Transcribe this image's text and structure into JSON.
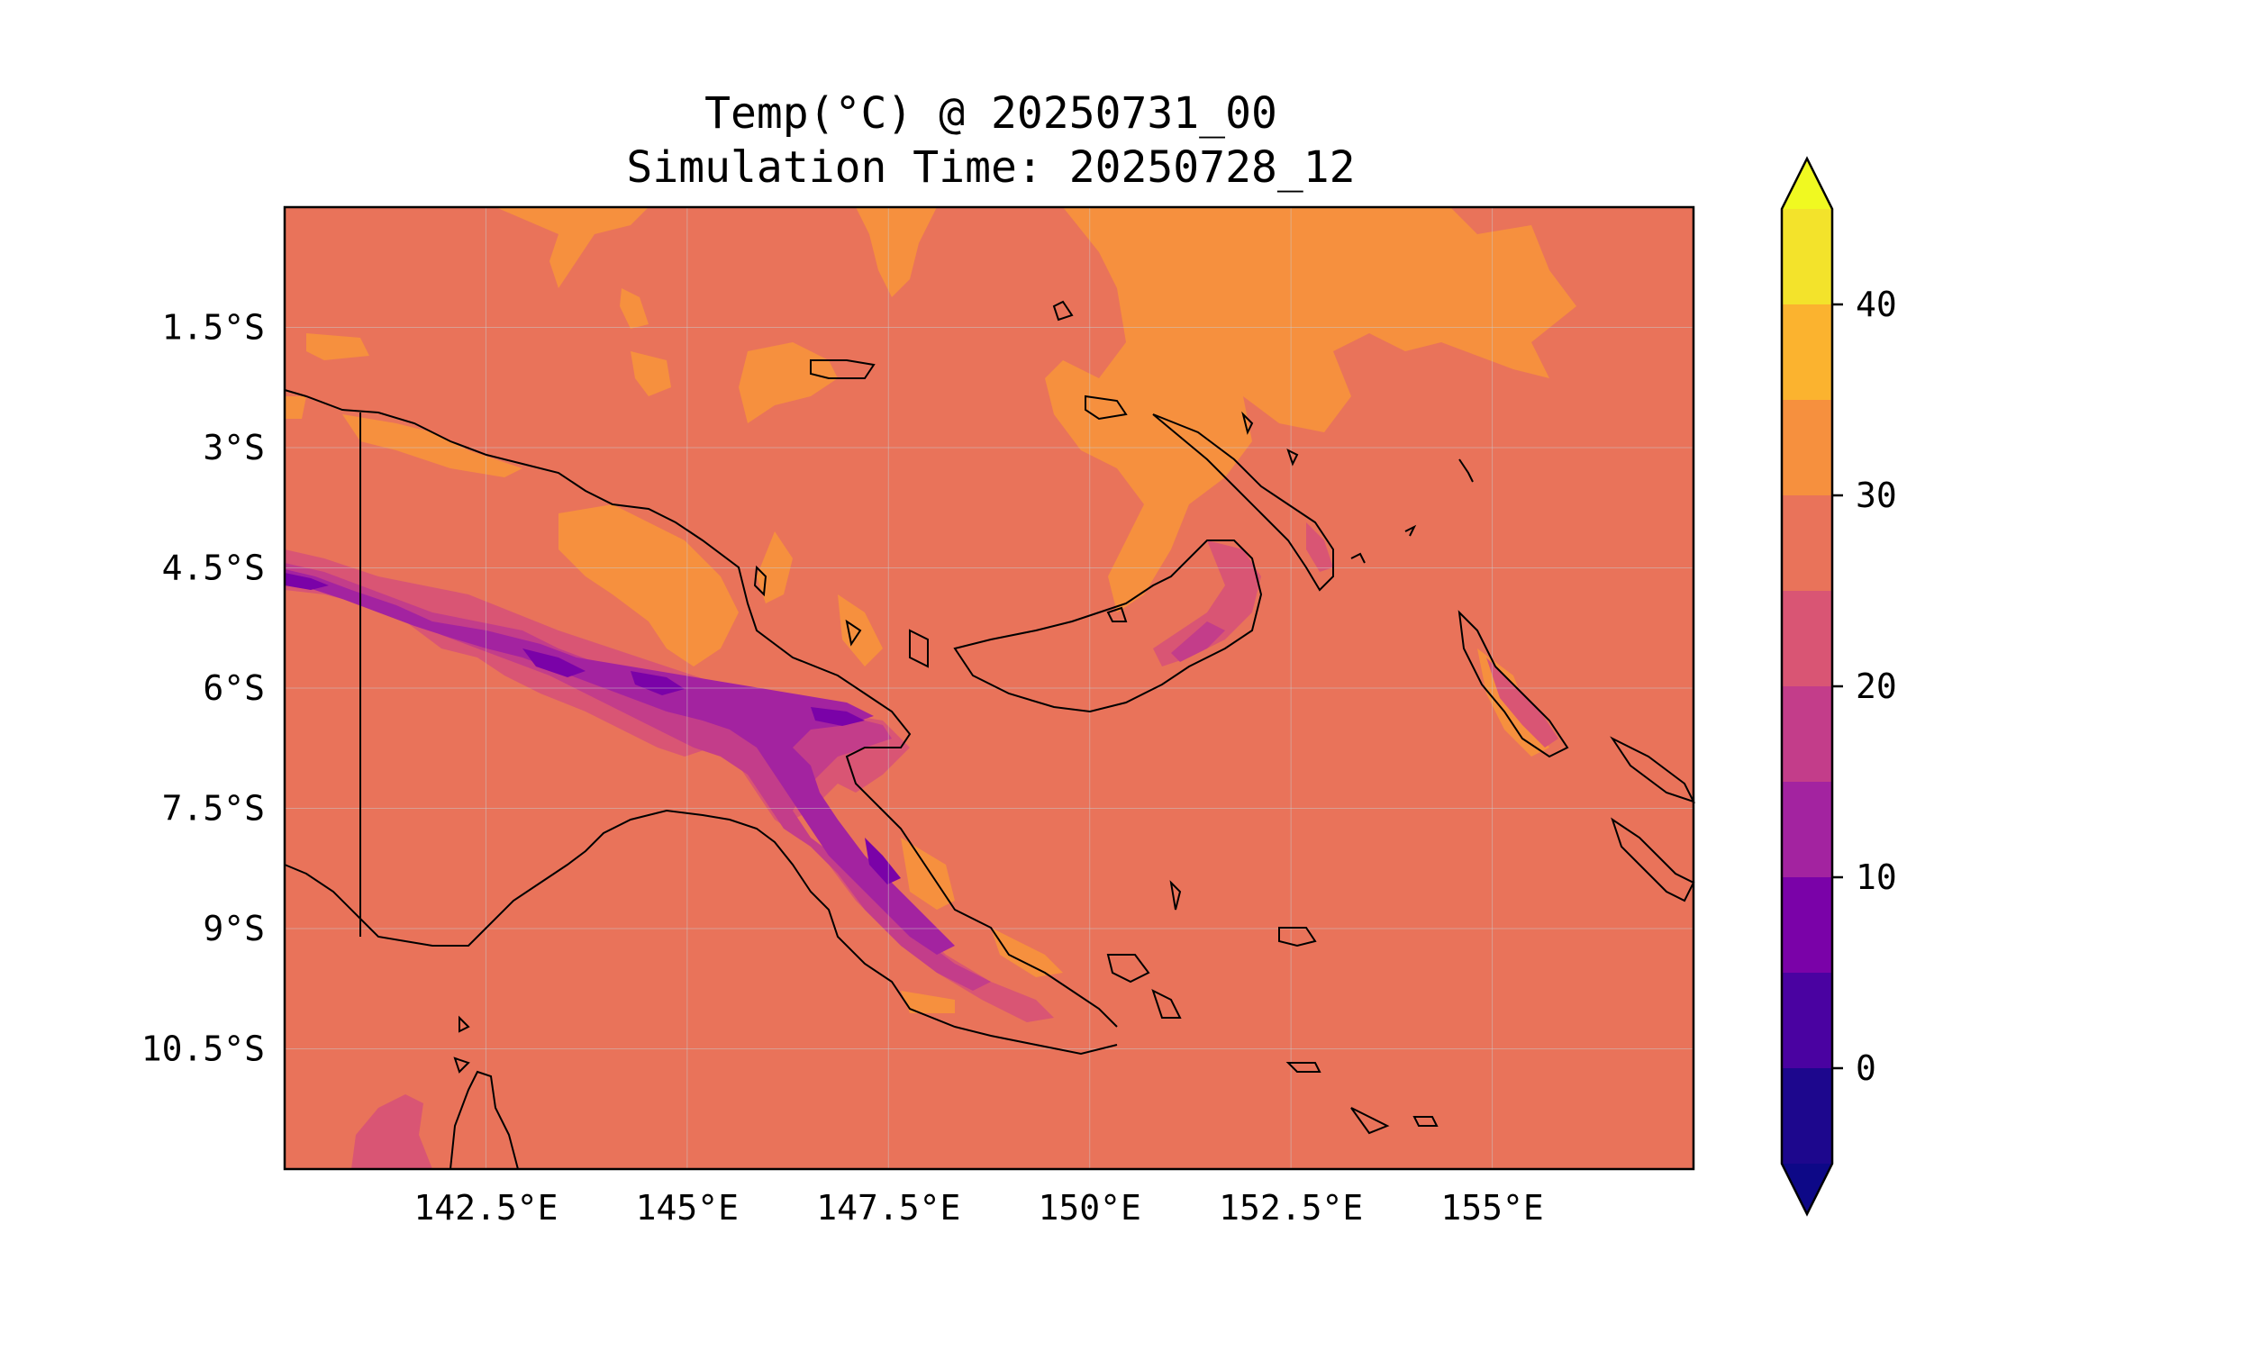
{
  "title": {
    "line1": "Temp(°C) @ 20250731_00",
    "line2": "Simulation Time: 20250728_12"
  },
  "map": {
    "lon_range": [
      140,
      157.5
    ],
    "lat_range": [
      -12,
      0
    ],
    "lon_ticks": [
      {
        "value": 142.5,
        "label": "142.5°E"
      },
      {
        "value": 145,
        "label": "145°E"
      },
      {
        "value": 147.5,
        "label": "147.5°E"
      },
      {
        "value": 150,
        "label": "150°E"
      },
      {
        "value": 152.5,
        "label": "152.5°E"
      },
      {
        "value": 155,
        "label": "155°E"
      }
    ],
    "lat_ticks": [
      {
        "value": -1.5,
        "label": "1.5°S"
      },
      {
        "value": -3,
        "label": "3°S"
      },
      {
        "value": -4.5,
        "label": "4.5°S"
      },
      {
        "value": -6,
        "label": "6°S"
      },
      {
        "value": -7.5,
        "label": "7.5°S"
      },
      {
        "value": -9,
        "label": "9°S"
      },
      {
        "value": -10.5,
        "label": "10.5°S"
      }
    ],
    "grid": true,
    "background_level_color": "#e9735a"
  },
  "colorbar": {
    "min": -5,
    "max": 45,
    "extend": "both",
    "levels": [
      {
        "from": -5,
        "to": 0,
        "color": "#1d078d"
      },
      {
        "from": 0,
        "to": 5,
        "color": "#4a02a1"
      },
      {
        "from": 5,
        "to": 10,
        "color": "#7a02a8"
      },
      {
        "from": 10,
        "to": 15,
        "color": "#a323a0"
      },
      {
        "from": 15,
        "to": 20,
        "color": "#c33d8a"
      },
      {
        "from": 20,
        "to": 25,
        "color": "#d95574"
      },
      {
        "from": 25,
        "to": 30,
        "color": "#e9735a"
      },
      {
        "from": 30,
        "to": 35,
        "color": "#f6903e"
      },
      {
        "from": 35,
        "to": 40,
        "color": "#fbb32f"
      },
      {
        "from": 40,
        "to": 45,
        "color": "#f3e32b"
      }
    ],
    "under_color": "#0d0887",
    "over_color": "#f0f921",
    "ticks": [
      {
        "value": 0,
        "label": "0"
      },
      {
        "value": 10,
        "label": "10"
      },
      {
        "value": 20,
        "label": "20"
      },
      {
        "value": 30,
        "label": "30"
      },
      {
        "value": 40,
        "label": "40"
      }
    ]
  }
}
